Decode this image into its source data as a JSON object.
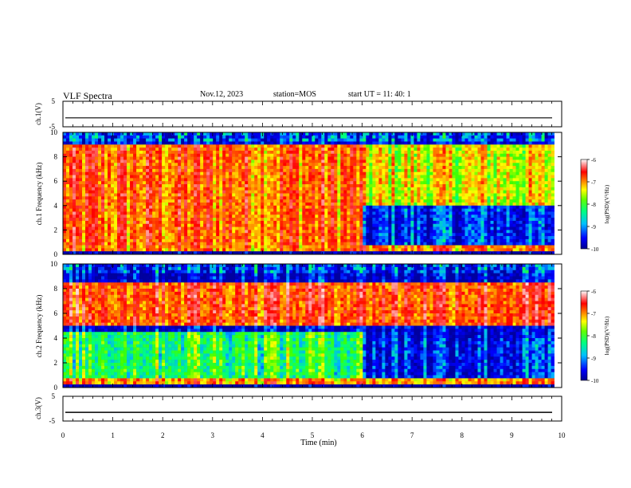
{
  "header": {
    "title": "VLF Spectra",
    "date": "Nov.12, 2023",
    "station": "station=MOS",
    "start": "start  UT =   11: 40: 1"
  },
  "colors": {
    "scale_stops": [
      "#0000a0",
      "#0000ff",
      "#00b0ff",
      "#00ff80",
      "#40ff00",
      "#ffff00",
      "#ff8000",
      "#ff0000",
      "#ff9090",
      "#ffffff"
    ]
  },
  "chart_data": [
    {
      "type": "line",
      "panel": "ch1-waveform",
      "ylabel": "ch.1(V)",
      "ylim": [
        -5,
        5
      ],
      "yticks": [
        "5",
        "-5"
      ],
      "x": [
        0,
        10
      ],
      "values": [
        -1.5,
        -1.5
      ],
      "xlim": [
        0,
        10
      ]
    },
    {
      "type": "heatmap",
      "panel": "ch1-spectrogram",
      "ylabel": "ch.1 Frequency (kHz)",
      "ylim": [
        0,
        10
      ],
      "yticks": [
        "0",
        "2",
        "4",
        "6",
        "8",
        "10"
      ],
      "xlim": [
        0,
        9.85
      ],
      "colorbar": {
        "label": "log(PSD)(V²/Hz)",
        "ticks": [
          "-6",
          "-7",
          "-8",
          "-9",
          "-10"
        ],
        "range": [
          -10,
          -6
        ]
      },
      "regimes": [
        {
          "time_range": [
            0,
            6
          ],
          "band_kHz": [
            0.5,
            9
          ],
          "log_psd": -7.2
        },
        {
          "time_range": [
            6,
            9.85
          ],
          "band_kHz": [
            4,
            9
          ],
          "log_psd": -7.8
        },
        {
          "time_range": [
            6.4,
            9.85
          ],
          "band_kHz": [
            0.5,
            4
          ],
          "log_psd": -9.5
        }
      ]
    },
    {
      "type": "heatmap",
      "panel": "ch2-spectrogram",
      "ylabel": "ch.2 Frequency (kHz)",
      "ylim": [
        0,
        10
      ],
      "yticks": [
        "0",
        "2",
        "4",
        "6",
        "8",
        "10"
      ],
      "xlim": [
        0,
        9.85
      ],
      "colorbar": {
        "label": "log(PSD)(V²/Hz)",
        "ticks": [
          "-6",
          "-7",
          "-8",
          "-9",
          "-10"
        ],
        "range": [
          -10,
          -6
        ]
      },
      "regimes": [
        {
          "time_range": [
            0,
            9.85
          ],
          "band_kHz": [
            5,
            8.5
          ],
          "log_psd": -7.0
        },
        {
          "time_range": [
            0,
            6
          ],
          "band_kHz": [
            0.5,
            4.5
          ],
          "log_psd": -8.4
        },
        {
          "time_range": [
            6,
            9.85
          ],
          "band_kHz": [
            0.5,
            4
          ],
          "log_psd": -9.5
        }
      ]
    },
    {
      "type": "line",
      "panel": "ch3-waveform",
      "ylabel": "ch.3(V)",
      "ylim": [
        -5,
        5
      ],
      "yticks": [
        "5",
        "-5"
      ],
      "x": [
        0,
        10
      ],
      "values": [
        -1.5,
        -1.5
      ],
      "xlim": [
        0,
        10
      ],
      "xlabel": "Time  (min)",
      "xticks": [
        "0",
        "1",
        "2",
        "3",
        "4",
        "5",
        "6",
        "7",
        "8",
        "9",
        "10"
      ]
    }
  ]
}
